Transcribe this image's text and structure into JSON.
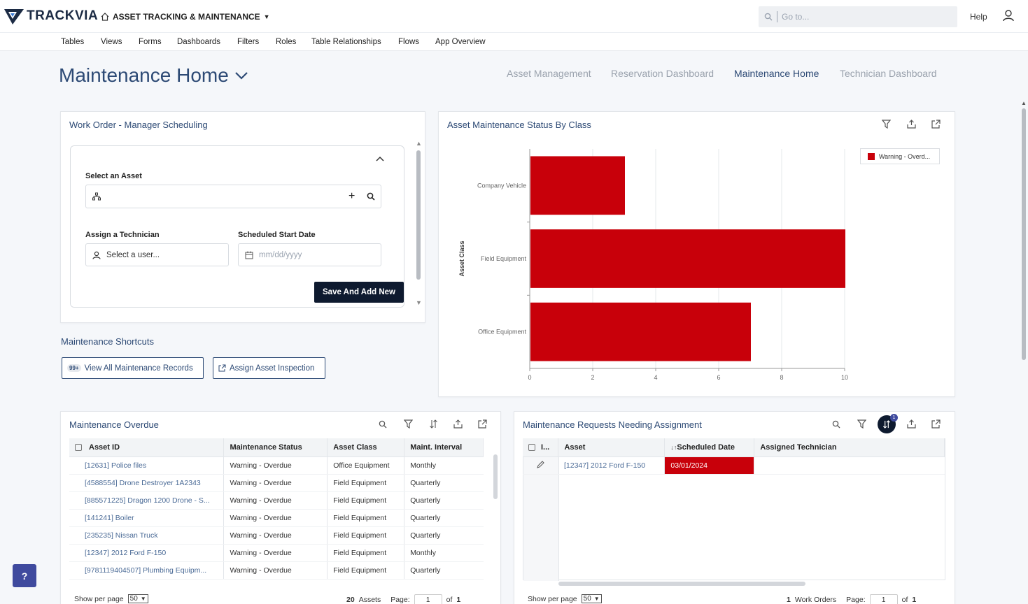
{
  "colors": {
    "accent": "#2d4a75",
    "warning": "#c8000a",
    "dark_button": "#0e1a2f"
  },
  "header": {
    "logo_text": "TRACKVIA",
    "app_title": "ASSET TRACKING & MAINTENANCE",
    "search_placeholder": "Go to...",
    "help": "Help"
  },
  "nav": [
    "Tables",
    "Views",
    "Forms",
    "Dashboards",
    "Filters",
    "Roles",
    "Table Relationships",
    "Flows",
    "App Overview"
  ],
  "page": {
    "title": "Maintenance Home"
  },
  "dashboards": [
    "Asset Management",
    "Reservation Dashboard",
    "Maintenance Home",
    "Technician Dashboard"
  ],
  "work_order": {
    "title": "Work Order - Manager Scheduling",
    "select_asset_label": "Select an Asset",
    "assign_tech_label": "Assign a Technician",
    "tech_placeholder": "Select a user...",
    "start_date_label": "Scheduled Start Date",
    "date_placeholder": "mm/dd/yyyy",
    "save_button": "Save And Add New"
  },
  "shortcuts": {
    "title": "Maintenance Shortcuts",
    "badge": "99+",
    "view_all": "View All Maintenance Records",
    "assign_inspection": "Assign Asset Inspection"
  },
  "chart_panel": {
    "title": "Asset Maintenance Status By Class"
  },
  "chart_data": {
    "type": "bar",
    "orientation": "horizontal",
    "categories": [
      "Company Vehicle",
      "Field Equipment",
      "Office Equipment"
    ],
    "series": [
      {
        "name": "Warning - Overd...",
        "values": [
          3,
          10,
          7
        ],
        "color": "#c8000a"
      }
    ],
    "xlim": [
      0,
      10
    ],
    "xticks": [
      "0",
      "2",
      "4",
      "6",
      "8",
      "10"
    ],
    "ylabel": "Asset Class",
    "grid": true,
    "legend": "top-right"
  },
  "overdue": {
    "title": "Maintenance Overdue",
    "columns": [
      "Asset ID",
      "Maintenance Status",
      "Asset Class",
      "Maint. Interval"
    ],
    "rows": [
      [
        "[12631] Police files",
        "Warning - Overdue",
        "Office Equipment",
        "Monthly"
      ],
      [
        "[4588554] Drone Destroyer 1A2343",
        "Warning - Overdue",
        "Field Equipment",
        "Quarterly"
      ],
      [
        "[885571225] Dragon 1200 Drone - S...",
        "Warning - Overdue",
        "Field Equipment",
        "Quarterly"
      ],
      [
        "[141241] Boiler",
        "Warning - Overdue",
        "Field Equipment",
        "Quarterly"
      ],
      [
        "[235235] Nissan Truck",
        "Warning - Overdue",
        "Field Equipment",
        "Quarterly"
      ],
      [
        "[12347] 2012 Ford F-150",
        "Warning - Overdue",
        "Field Equipment",
        "Monthly"
      ],
      [
        "[9781119404507] Plumbing Equipm...",
        "Warning - Overdue",
        "Field Equipment",
        "Quarterly"
      ]
    ],
    "footer": {
      "show_per_page": "Show per page",
      "per_page": "50",
      "count": "20",
      "count_label": "Assets",
      "page_label": "Page:",
      "page": "1",
      "of": "of",
      "total_pages": "1"
    }
  },
  "requests": {
    "title": "Maintenance Requests Needing Assignment",
    "sort_badge": "1",
    "columns": [
      "I...",
      "Asset",
      "Scheduled Date",
      "Assigned Technician"
    ],
    "rows": [
      [
        "[12347] 2012 Ford F-150",
        "03/01/2024",
        ""
      ]
    ],
    "footer": {
      "show_per_page": "Show per page",
      "per_page": "50",
      "count": "1",
      "count_label": "Work Orders",
      "page_label": "Page:",
      "page": "1",
      "of": "of",
      "total_pages": "1"
    }
  },
  "help_button": "?"
}
